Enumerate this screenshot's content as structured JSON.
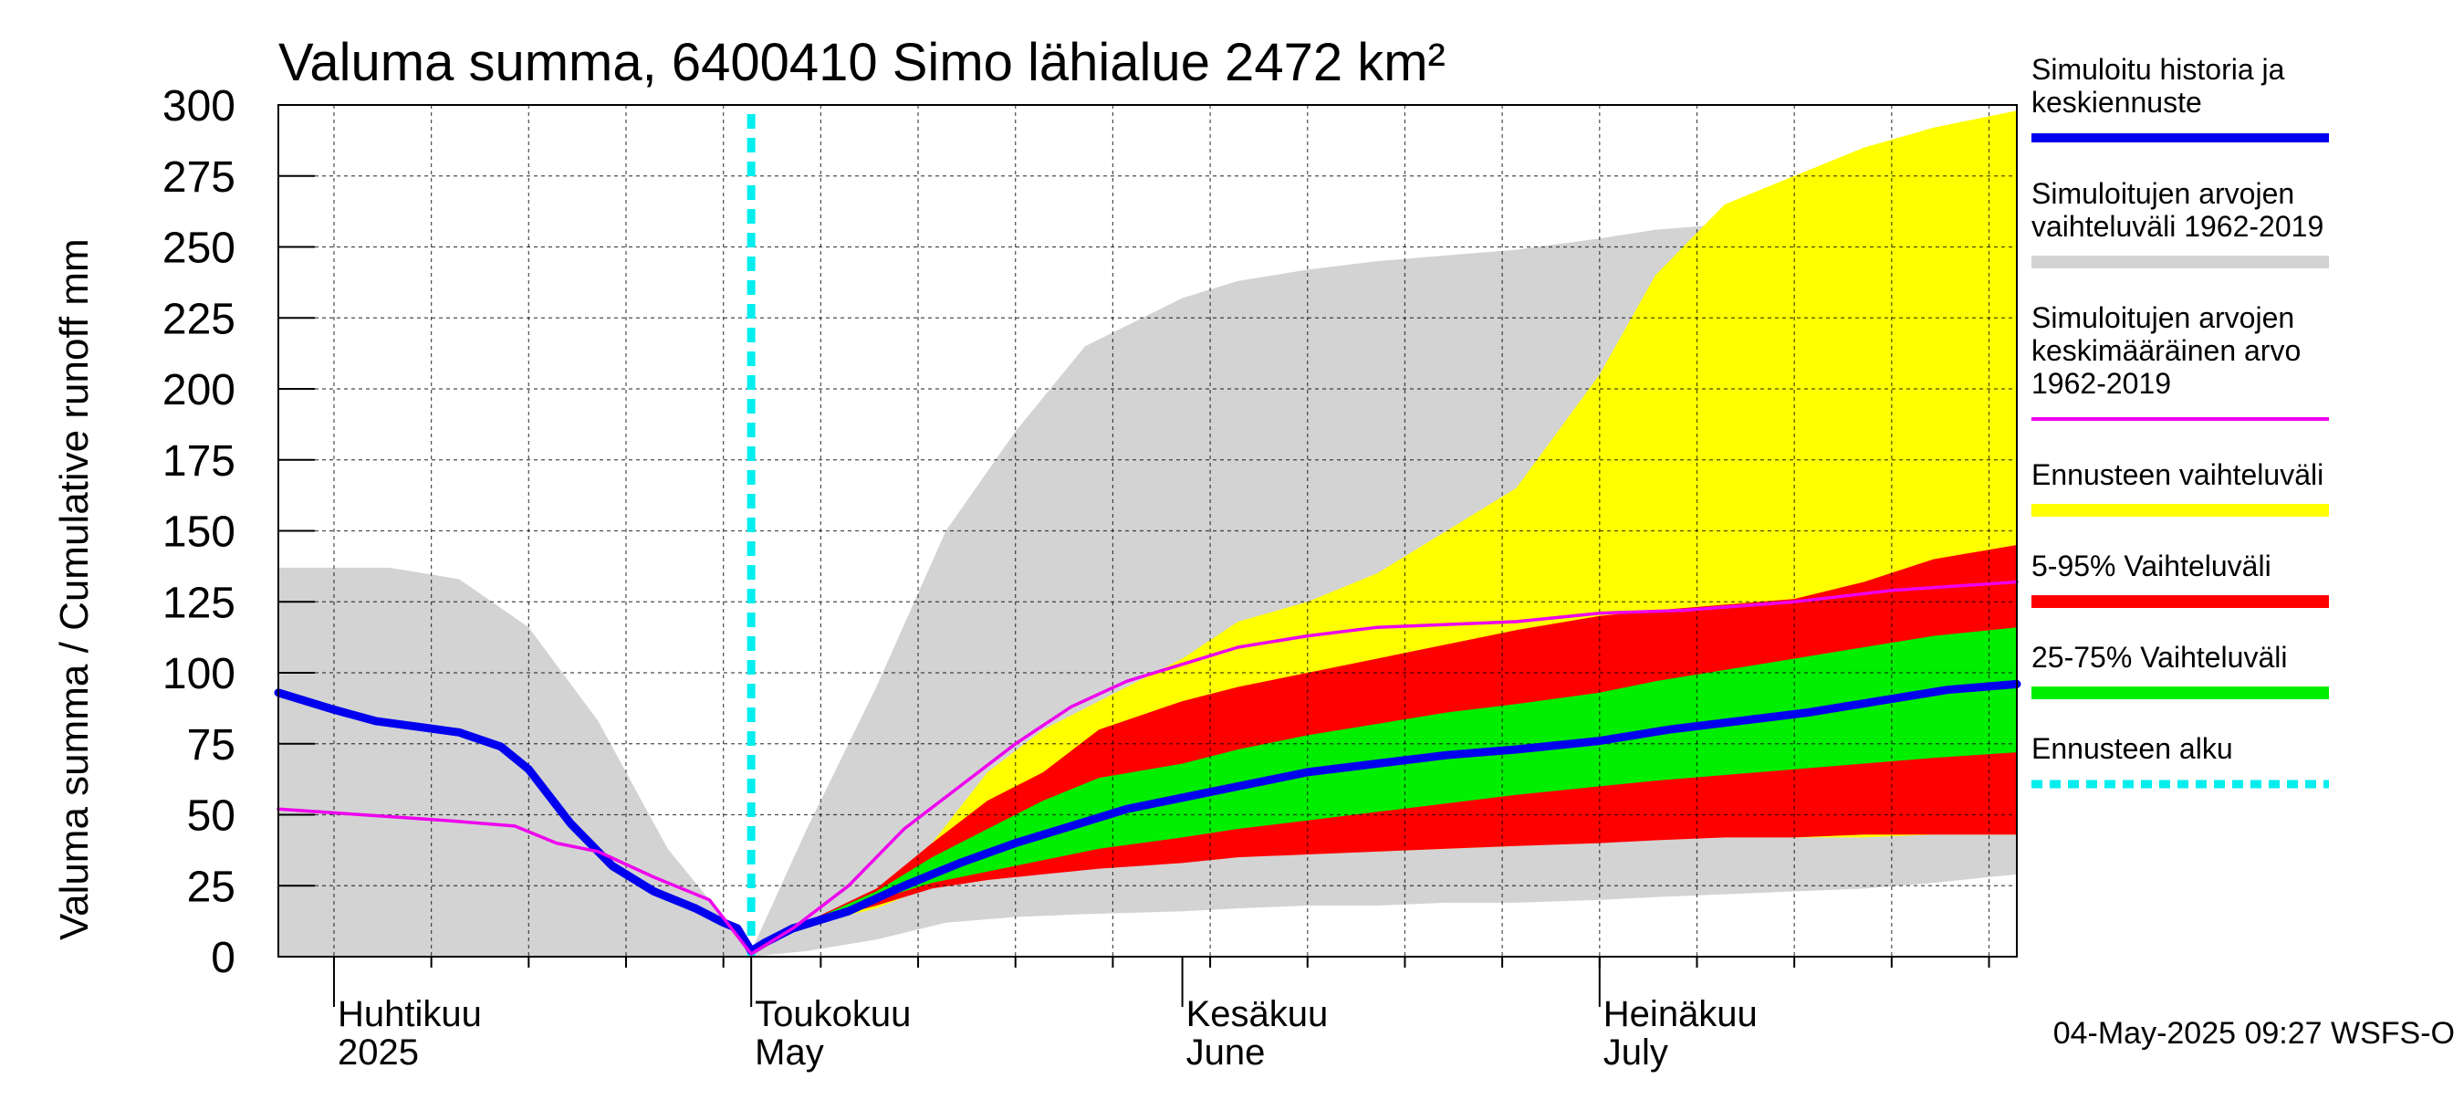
{
  "chart_data": {
    "type": "area",
    "title": "Valuma summa, 6400410 Simo lähialue 2472 km²",
    "ylabel": "Valuma summa / Cumulative runoff     mm",
    "ylim": [
      0,
      300
    ],
    "yticks": [
      0,
      25,
      50,
      75,
      100,
      125,
      150,
      175,
      200,
      225,
      250,
      275,
      300
    ],
    "xlim": [
      "2025-03-28",
      "2025-07-31"
    ],
    "x_month_labels": [
      {
        "line1": "Huhtikuu",
        "line2": "2025",
        "date": "2025-04-01"
      },
      {
        "line1": "Toukokuu",
        "line2": "May",
        "date": "2025-05-01"
      },
      {
        "line1": "Kesäkuu",
        "line2": "June",
        "date": "2025-06-01"
      },
      {
        "line1": "Heinäkuu",
        "line2": "July",
        "date": "2025-07-01"
      }
    ],
    "grid": true,
    "legend_position": "right",
    "forecast_start": "2025-05-01",
    "timestamp": "04-May-2025 09:27 WSFS-O",
    "colors": {
      "history_range": "#d3d3d3",
      "forecast_range": "#ffff00",
      "p5_95": "#ff0000",
      "p25_75": "#00ee00",
      "simulated": "#0000ee",
      "mean": "#ee00ee",
      "forecast_start": "#00eeee"
    },
    "series": [
      {
        "name": "Simuloitu historia ja keskiennuste",
        "kind": "line",
        "color": "#0000ee",
        "points": [
          [
            "2025-03-28",
            93
          ],
          [
            "2025-04-01",
            87
          ],
          [
            "2025-04-04",
            83
          ],
          [
            "2025-04-07",
            81
          ],
          [
            "2025-04-10",
            79
          ],
          [
            "2025-04-13",
            74
          ],
          [
            "2025-04-15",
            66
          ],
          [
            "2025-04-18",
            47
          ],
          [
            "2025-04-21",
            32
          ],
          [
            "2025-04-24",
            23
          ],
          [
            "2025-04-27",
            17
          ],
          [
            "2025-04-29",
            12
          ],
          [
            "2025-04-30",
            10
          ],
          [
            "2025-05-01",
            2
          ],
          [
            "2025-05-02",
            5
          ],
          [
            "2025-05-04",
            10
          ],
          [
            "2025-05-08",
            16
          ],
          [
            "2025-05-12",
            25
          ],
          [
            "2025-05-16",
            33
          ],
          [
            "2025-05-20",
            40
          ],
          [
            "2025-05-24",
            46
          ],
          [
            "2025-05-28",
            52
          ],
          [
            "2025-06-01",
            56
          ],
          [
            "2025-06-05",
            60
          ],
          [
            "2025-06-10",
            65
          ],
          [
            "2025-06-15",
            68
          ],
          [
            "2025-06-20",
            71
          ],
          [
            "2025-06-25",
            73
          ],
          [
            "2025-07-01",
            76
          ],
          [
            "2025-07-06",
            80
          ],
          [
            "2025-07-11",
            83
          ],
          [
            "2025-07-16",
            86
          ],
          [
            "2025-07-21",
            90
          ],
          [
            "2025-07-26",
            94
          ],
          [
            "2025-07-31",
            96
          ]
        ]
      },
      {
        "name": "Simuloitujen arvojen keskimääräinen arvo 1962-2019",
        "kind": "line",
        "color": "#ee00ee",
        "points": [
          [
            "2025-03-28",
            52
          ],
          [
            "2025-04-03",
            50
          ],
          [
            "2025-04-09",
            48
          ],
          [
            "2025-04-14",
            46
          ],
          [
            "2025-04-17",
            40
          ],
          [
            "2025-04-20",
            37
          ],
          [
            "2025-04-24",
            28
          ],
          [
            "2025-04-28",
            20
          ],
          [
            "2025-05-01",
            1
          ],
          [
            "2025-05-04",
            10
          ],
          [
            "2025-05-08",
            25
          ],
          [
            "2025-05-12",
            45
          ],
          [
            "2025-05-16",
            60
          ],
          [
            "2025-05-20",
            75
          ],
          [
            "2025-05-24",
            88
          ],
          [
            "2025-05-28",
            97
          ],
          [
            "2025-06-01",
            103
          ],
          [
            "2025-06-05",
            109
          ],
          [
            "2025-06-10",
            113
          ],
          [
            "2025-06-15",
            116
          ],
          [
            "2025-06-20",
            117
          ],
          [
            "2025-06-25",
            118
          ],
          [
            "2025-07-01",
            121
          ],
          [
            "2025-07-07",
            122
          ],
          [
            "2025-07-15",
            125
          ],
          [
            "2025-07-22",
            129
          ],
          [
            "2025-07-31",
            132
          ]
        ]
      },
      {
        "name": "Simuloitujen arvojen vaihteluväli 1962-2019",
        "kind": "band",
        "color": "#d3d3d3",
        "x": [
          "2025-03-28",
          "2025-04-05",
          "2025-04-10",
          "2025-04-15",
          "2025-04-20",
          "2025-04-25",
          "2025-05-01",
          "2025-05-05",
          "2025-05-10",
          "2025-05-15",
          "2025-05-20",
          "2025-05-25",
          "2025-06-01",
          "2025-06-05",
          "2025-06-10",
          "2025-06-15",
          "2025-06-20",
          "2025-06-25",
          "2025-07-01",
          "2025-07-05",
          "2025-07-10",
          "2025-07-15",
          "2025-07-20",
          "2025-07-25",
          "2025-07-31"
        ],
        "low": [
          0,
          0,
          0,
          0,
          0,
          0,
          0,
          2,
          6,
          12,
          14,
          15,
          16,
          17,
          18,
          18,
          19,
          19,
          20,
          21,
          22,
          23,
          24,
          26,
          29
        ],
        "high": [
          137,
          137,
          133,
          116,
          83,
          38,
          2,
          45,
          95,
          150,
          185,
          215,
          232,
          238,
          242,
          245,
          247,
          249,
          253,
          256,
          258,
          262,
          270,
          280,
          288
        ]
      },
      {
        "name": "Ennusteen vaihteluväli",
        "kind": "band",
        "color": "#ffff00",
        "x": [
          "2025-05-04",
          "2025-05-10",
          "2025-05-14",
          "2025-05-18",
          "2025-05-22",
          "2025-05-26",
          "2025-06-01",
          "2025-06-05",
          "2025-06-10",
          "2025-06-15",
          "2025-06-20",
          "2025-06-25",
          "2025-07-01",
          "2025-07-05",
          "2025-07-10",
          "2025-07-15",
          "2025-07-20",
          "2025-07-25",
          "2025-07-31"
        ],
        "low": [
          10,
          17,
          25,
          29,
          32,
          33,
          35,
          36,
          37,
          37,
          38,
          39,
          42,
          42,
          42,
          42,
          42,
          43,
          43
        ],
        "high": [
          10,
          22,
          40,
          65,
          80,
          90,
          105,
          118,
          125,
          135,
          150,
          165,
          205,
          240,
          265,
          275,
          285,
          292,
          298
        ]
      },
      {
        "name": "5-95% Vaihteluväli",
        "kind": "band",
        "color": "#ff0000",
        "x": [
          "2025-05-04",
          "2025-05-10",
          "2025-05-14",
          "2025-05-18",
          "2025-05-22",
          "2025-05-26",
          "2025-06-01",
          "2025-06-05",
          "2025-06-10",
          "2025-06-15",
          "2025-06-20",
          "2025-06-25",
          "2025-07-01",
          "2025-07-05",
          "2025-07-10",
          "2025-07-15",
          "2025-07-20",
          "2025-07-25",
          "2025-07-31"
        ],
        "low": [
          10,
          18,
          24,
          27,
          29,
          31,
          33,
          35,
          36,
          37,
          38,
          39,
          40,
          41,
          42,
          42,
          43,
          43,
          43
        ],
        "high": [
          10,
          24,
          40,
          55,
          65,
          80,
          90,
          95,
          100,
          105,
          110,
          115,
          120,
          122,
          124,
          126,
          132,
          140,
          145
        ]
      },
      {
        "name": "25-75% Vaihteluväli",
        "kind": "band",
        "color": "#00ee00",
        "x": [
          "2025-05-04",
          "2025-05-10",
          "2025-05-14",
          "2025-05-18",
          "2025-05-22",
          "2025-05-26",
          "2025-06-01",
          "2025-06-05",
          "2025-06-10",
          "2025-06-15",
          "2025-06-20",
          "2025-06-25",
          "2025-07-01",
          "2025-07-05",
          "2025-07-10",
          "2025-07-15",
          "2025-07-20",
          "2025-07-25",
          "2025-07-31"
        ],
        "low": [
          10,
          20,
          26,
          30,
          34,
          38,
          42,
          45,
          48,
          51,
          54,
          57,
          60,
          62,
          64,
          66,
          68,
          70,
          72
        ],
        "high": [
          10,
          23,
          35,
          45,
          55,
          63,
          68,
          73,
          78,
          82,
          86,
          89,
          93,
          97,
          101,
          105,
          109,
          113,
          116
        ]
      }
    ]
  },
  "legend": [
    {
      "lines": [
        "Simuloitu historia ja",
        "keskiennuste"
      ],
      "color": "#0000ee",
      "style": "line"
    },
    {
      "lines": [
        "Simuloitujen arvojen",
        "vaihteluväli 1962-2019"
      ],
      "color": "#d3d3d3",
      "style": "band"
    },
    {
      "lines": [
        "Simuloitujen arvojen",
        "keskimääräinen arvo",
        "   1962-2019"
      ],
      "color": "#ee00ee",
      "style": "thin"
    },
    {
      "lines": [
        "Ennusteen vaihteluväli"
      ],
      "color": "#ffff00",
      "style": "band"
    },
    {
      "lines": [
        "5-95% Vaihteluväli"
      ],
      "color": "#ff0000",
      "style": "band"
    },
    {
      "lines": [
        "25-75% Vaihteluväli"
      ],
      "color": "#00ee00",
      "style": "band"
    },
    {
      "lines": [
        "Ennusteen alku"
      ],
      "color": "#00eeee",
      "style": "dashed"
    }
  ]
}
